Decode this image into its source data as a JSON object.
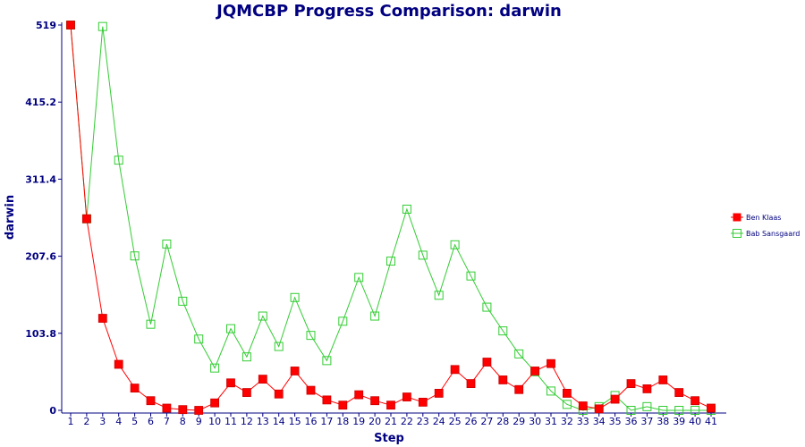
{
  "chart_data": {
    "type": "line",
    "title": "JQMCBP Progress Comparison: darwin",
    "xlabel": "Step",
    "ylabel": "darwin",
    "x": [
      1,
      2,
      3,
      4,
      5,
      6,
      7,
      8,
      9,
      10,
      11,
      12,
      13,
      14,
      15,
      16,
      17,
      18,
      19,
      20,
      21,
      22,
      23,
      24,
      25,
      26,
      27,
      28,
      29,
      30,
      31,
      32,
      33,
      34,
      35,
      36,
      37,
      38,
      39,
      40,
      41
    ],
    "ylim": [
      0,
      519
    ],
    "yticks": [
      "0",
      "103.8",
      "207.6",
      "311.4",
      "415.2",
      "519"
    ],
    "ytick_values": [
      0,
      103.8,
      207.6,
      311.4,
      415.2,
      519
    ],
    "grid": false,
    "legend_position": "right",
    "series": [
      {
        "name": "Ben Klaas",
        "color": "#ff0000",
        "marker": "filled-square",
        "values": [
          519,
          258,
          124,
          62,
          30,
          13,
          3,
          1,
          0,
          10,
          37,
          24,
          42,
          22,
          53,
          27,
          14,
          7,
          21,
          13,
          7,
          18,
          11,
          23,
          55,
          36,
          65,
          41,
          28,
          53,
          63,
          23,
          6,
          2,
          15,
          36,
          29,
          41,
          24,
          13,
          3
        ]
      },
      {
        "name": "Bab Sansgaard",
        "color": "#33cc33",
        "marker": "hollow-square",
        "values": [
          519,
          258,
          517,
          337,
          208,
          116,
          224,
          147,
          96,
          57,
          110,
          72,
          127,
          86,
          152,
          101,
          67,
          120,
          179,
          127,
          201,
          271,
          209,
          155,
          223,
          181,
          139,
          107,
          76,
          52,
          26,
          8,
          0,
          5,
          20,
          0,
          5,
          0,
          0,
          0,
          0
        ]
      }
    ]
  }
}
